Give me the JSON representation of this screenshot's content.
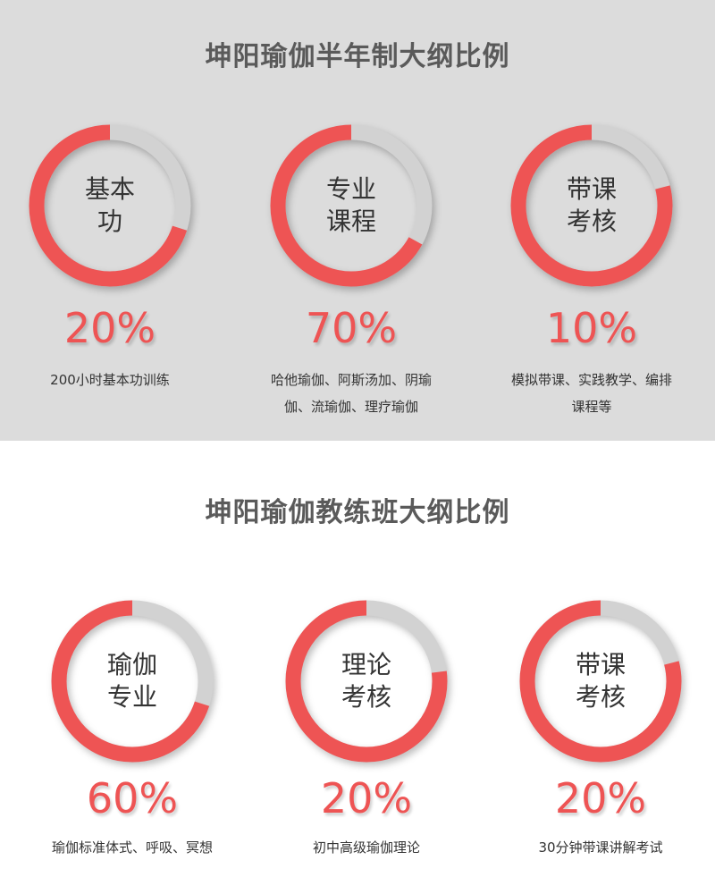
{
  "colors": {
    "accent": "#ee5454",
    "track": "#d2d2d2",
    "background_top": "#dcdcdc"
  },
  "section1": {
    "title": "坤阳瑜伽半年制大纲比例",
    "items": [
      {
        "label_lines": [
          "基本",
          "功"
        ],
        "percent": "20%",
        "desc_lines": [
          "200小时基本功训练"
        ],
        "red_fraction": 0.7
      },
      {
        "label_lines": [
          "专业",
          "课程"
        ],
        "percent": "70%",
        "desc_lines": [
          "哈他瑜伽、阿斯汤加、阴瑜",
          "伽、流瑜伽、理疗瑜伽"
        ],
        "red_fraction": 0.67
      },
      {
        "label_lines": [
          "带课",
          "考核"
        ],
        "percent": "10%",
        "desc_lines": [
          "模拟带课、实践教学、编排",
          "课程等"
        ],
        "red_fraction": 0.79
      }
    ]
  },
  "section2": {
    "title": "坤阳瑜伽教练班大纲比例",
    "items": [
      {
        "label_lines": [
          "瑜伽",
          "专业"
        ],
        "percent": "60%",
        "desc_lines": [
          "瑜伽标准体式、呼吸、冥想"
        ],
        "red_fraction": 0.7
      },
      {
        "label_lines": [
          "理论",
          "考核"
        ],
        "percent": "20%",
        "desc_lines": [
          "初中高级瑜伽理论"
        ],
        "red_fraction": 0.77
      },
      {
        "label_lines": [
          "带课",
          "考核"
        ],
        "percent": "20%",
        "desc_lines": [
          "30分钟带课讲解考试"
        ],
        "red_fraction": 0.79
      }
    ]
  }
}
